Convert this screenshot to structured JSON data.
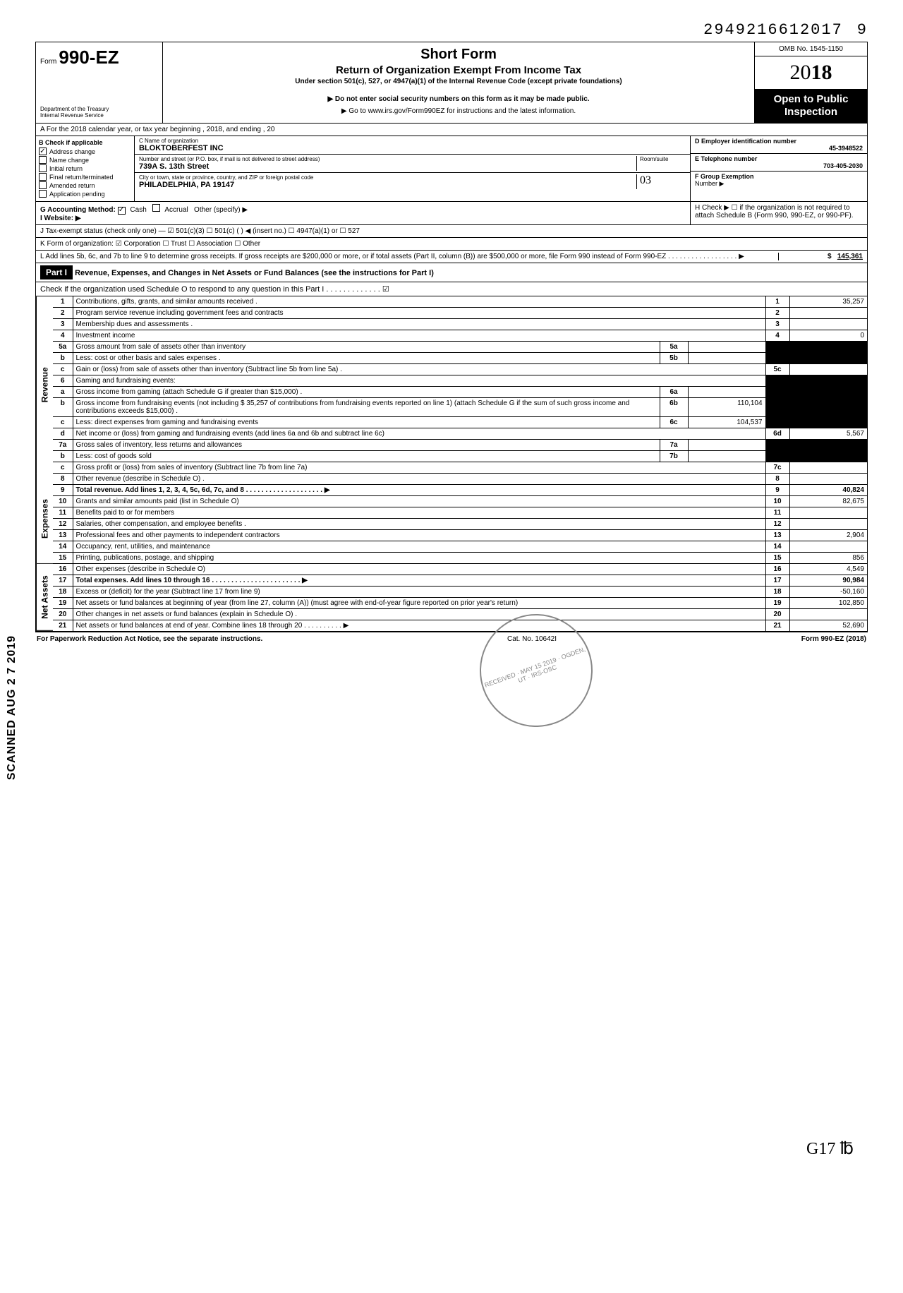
{
  "top_number": "29492166120179",
  "top_number_main": "2949216612017",
  "top_number_last": "9",
  "header": {
    "form_prefix": "Form",
    "form_number": "990-EZ",
    "dept1": "Department of the Treasury",
    "dept2": "Internal Revenue Service",
    "title": "Short Form",
    "subtitle": "Return of Organization Exempt From Income Tax",
    "sub2": "Under section 501(c), 527, or 4947(a)(1) of the Internal Revenue Code (except private foundations)",
    "note1": "▶ Do not enter social security numbers on this form as it may be made public.",
    "note2": "▶ Go to www.irs.gov/Form990EZ for instructions and the latest information.",
    "omb": "OMB No. 1545-1150",
    "year_prefix": "20",
    "year_bold": "18",
    "open_public": "Open to Public Inspection"
  },
  "row_a": "A  For the 2018 calendar year, or tax year beginning                                                            , 2018, and ending                                                  , 20",
  "col_b": {
    "header": "B  Check if applicable",
    "items": [
      {
        "checked": true,
        "label": "Address change"
      },
      {
        "checked": false,
        "label": "Name change"
      },
      {
        "checked": false,
        "label": "Initial return"
      },
      {
        "checked": false,
        "label": "Final return/terminated"
      },
      {
        "checked": false,
        "label": "Amended return"
      },
      {
        "checked": false,
        "label": "Application pending"
      }
    ]
  },
  "col_c": {
    "r1_label": "C  Name of organization",
    "r1_val": "BLOKTOBERFEST INC",
    "r2_label": "Number and street (or P.O. box, if mail is not delivered to street address)",
    "r2_room": "Room/suite",
    "r2_val": "739A S. 13th Street",
    "r3_label": "City or town, state or province, country, and ZIP or foreign postal code",
    "r3_val": "PHILADELPHIA, PA 19147",
    "r3_room_val": "03"
  },
  "col_d": {
    "d_label": "D Employer identification number",
    "d_val": "45-3948522",
    "e_label": "E Telephone number",
    "e_val": "703-405-2030",
    "f_label": "F Group Exemption",
    "f_label2": "Number ▶"
  },
  "row_g": {
    "g_label": "G  Accounting Method:",
    "cash": "Cash",
    "accrual": "Accrual",
    "other": "Other (specify) ▶",
    "cash_checked": true,
    "website_label": "I  Website: ▶",
    "h_text": "H  Check ▶ ☐ if the organization is not required to attach Schedule B (Form 990, 990-EZ, or 990-PF)."
  },
  "row_j": "J  Tax-exempt status (check only one) — ☑ 501(c)(3)   ☐ 501(c) (        ) ◀ (insert no.) ☐ 4947(a)(1) or   ☐ 527",
  "row_k": "K  Form of organization:   ☑ Corporation     ☐ Trust     ☐ Association     ☐ Other",
  "row_l": {
    "text": "L  Add lines 5b, 6c, and 7b to line 9 to determine gross receipts. If gross receipts are $200,000 or more, or if total assets (Part II, column (B)) are $500,000 or more, file Form 990 instead of Form 990-EZ .  .  .  .  .  .  .  .  .  .  .  .  .  .  .  .  .  .  ▶",
    "amount": "145,361",
    "dollar": "$"
  },
  "part1": {
    "label": "Part I",
    "title": "Revenue, Expenses, and Changes in Net Assets or Fund Balances (see the instructions for Part I)",
    "check_line": "Check if the organization used Schedule O to respond to any question in this Part I .  .  .  .  .  .  .  .  .  .  .  .  .  ☑"
  },
  "sections": {
    "revenue": "Revenue",
    "expenses": "Expenses",
    "netassets": "Net Assets"
  },
  "lines": [
    {
      "n": "1",
      "desc": "Contributions, gifts, grants, and similar amounts received .",
      "rn": "1",
      "ramt": "35,257"
    },
    {
      "n": "2",
      "desc": "Program service revenue including government fees and contracts",
      "rn": "2",
      "ramt": ""
    },
    {
      "n": "3",
      "desc": "Membership dues and assessments .",
      "rn": "3",
      "ramt": ""
    },
    {
      "n": "4",
      "desc": "Investment income",
      "rn": "4",
      "ramt": "0"
    },
    {
      "n": "5a",
      "desc": "Gross amount from sale of assets other than inventory",
      "mb": "5a",
      "mv": "",
      "shade_r": true
    },
    {
      "n": "b",
      "desc": "Less: cost or other basis and sales expenses .",
      "mb": "5b",
      "mv": "",
      "shade_r": true
    },
    {
      "n": "c",
      "desc": "Gain or (loss) from sale of assets other than inventory (Subtract line 5b from line 5a) .",
      "rn": "5c",
      "ramt": ""
    },
    {
      "n": "6",
      "desc": "Gaming and fundraising events:",
      "shade_r": true
    },
    {
      "n": "a",
      "desc": "Gross income from gaming (attach Schedule G if greater than $15,000) .",
      "mb": "6a",
      "mv": "",
      "shade_r": true
    },
    {
      "n": "b",
      "desc": "Gross income from fundraising events (not including  $            35,257 of contributions from fundraising events reported on line 1) (attach Schedule G if the sum of such gross income and contributions exceeds $15,000) .",
      "mb": "6b",
      "mv": "110,104",
      "shade_r": true
    },
    {
      "n": "c",
      "desc": "Less: direct expenses from gaming and fundraising events",
      "mb": "6c",
      "mv": "104,537",
      "shade_r": true
    },
    {
      "n": "d",
      "desc": "Net income or (loss) from gaming and fundraising events (add lines 6a and 6b and subtract line 6c)",
      "rn": "6d",
      "ramt": "5,567"
    },
    {
      "n": "7a",
      "desc": "Gross sales of inventory, less returns and allowances",
      "mb": "7a",
      "mv": "",
      "shade_r": true
    },
    {
      "n": "b",
      "desc": "Less: cost of goods sold",
      "mb": "7b",
      "mv": "",
      "shade_r": true
    },
    {
      "n": "c",
      "desc": "Gross profit or (loss) from sales of inventory (Subtract line 7b from line 7a)",
      "rn": "7c",
      "ramt": ""
    },
    {
      "n": "8",
      "desc": "Other revenue (describe in Schedule O) .",
      "rn": "8",
      "ramt": ""
    },
    {
      "n": "9",
      "desc": "Total revenue. Add lines 1, 2, 3, 4, 5c, 6d, 7c, and 8   .  .  .  .  .  .  .  .  .  .  .  .  .  .  .  .  .  .  .  . ▶",
      "rn": "9",
      "ramt": "40,824",
      "bold": true
    },
    {
      "n": "10",
      "desc": "Grants and similar amounts paid (list in Schedule O)",
      "rn": "10",
      "ramt": "82,675"
    },
    {
      "n": "11",
      "desc": "Benefits paid to or for members",
      "rn": "11",
      "ramt": ""
    },
    {
      "n": "12",
      "desc": "Salaries, other compensation, and employee benefits .",
      "rn": "12",
      "ramt": ""
    },
    {
      "n": "13",
      "desc": "Professional fees and other payments to independent contractors",
      "rn": "13",
      "ramt": "2,904"
    },
    {
      "n": "14",
      "desc": "Occupancy, rent, utilities, and maintenance",
      "rn": "14",
      "ramt": ""
    },
    {
      "n": "15",
      "desc": "Printing, publications, postage, and shipping",
      "rn": "15",
      "ramt": "856"
    },
    {
      "n": "16",
      "desc": "Other expenses (describe in Schedule O)",
      "rn": "16",
      "ramt": "4,549"
    },
    {
      "n": "17",
      "desc": "Total expenses. Add lines 10 through 16   .  .  .  .  .  .  .  .  .  .  .  .  .  .  .  .  .  .  .  .  .  .  . ▶",
      "rn": "17",
      "ramt": "90,984",
      "bold": true
    },
    {
      "n": "18",
      "desc": "Excess or (deficit) for the year (Subtract line 17 from line 9)",
      "rn": "18",
      "ramt": "-50,160"
    },
    {
      "n": "19",
      "desc": "Net assets or fund balances at beginning of year (from line 27, column (A)) (must agree with end-of-year figure reported on prior year's return)",
      "rn": "19",
      "ramt": "102,850"
    },
    {
      "n": "20",
      "desc": "Other changes in net assets or fund balances (explain in Schedule O) .",
      "rn": "20",
      "ramt": ""
    },
    {
      "n": "21",
      "desc": "Net assets or fund balances at end of year. Combine lines 18 through 20   .  .  .  .  .  .  .  .  .  . ▶",
      "rn": "21",
      "ramt": "52,690"
    }
  ],
  "footer": {
    "left": "For Paperwork Reduction Act Notice, see the separate instructions.",
    "mid": "Cat. No. 10642I",
    "right": "Form 990-EZ (2018)"
  },
  "scanned": "SCANNED AUG 2 7 2019",
  "stamp": "RECEIVED · MAY 15 2019 · OGDEN, UT · IRS-OSC",
  "handwrite": "G17   ℔"
}
